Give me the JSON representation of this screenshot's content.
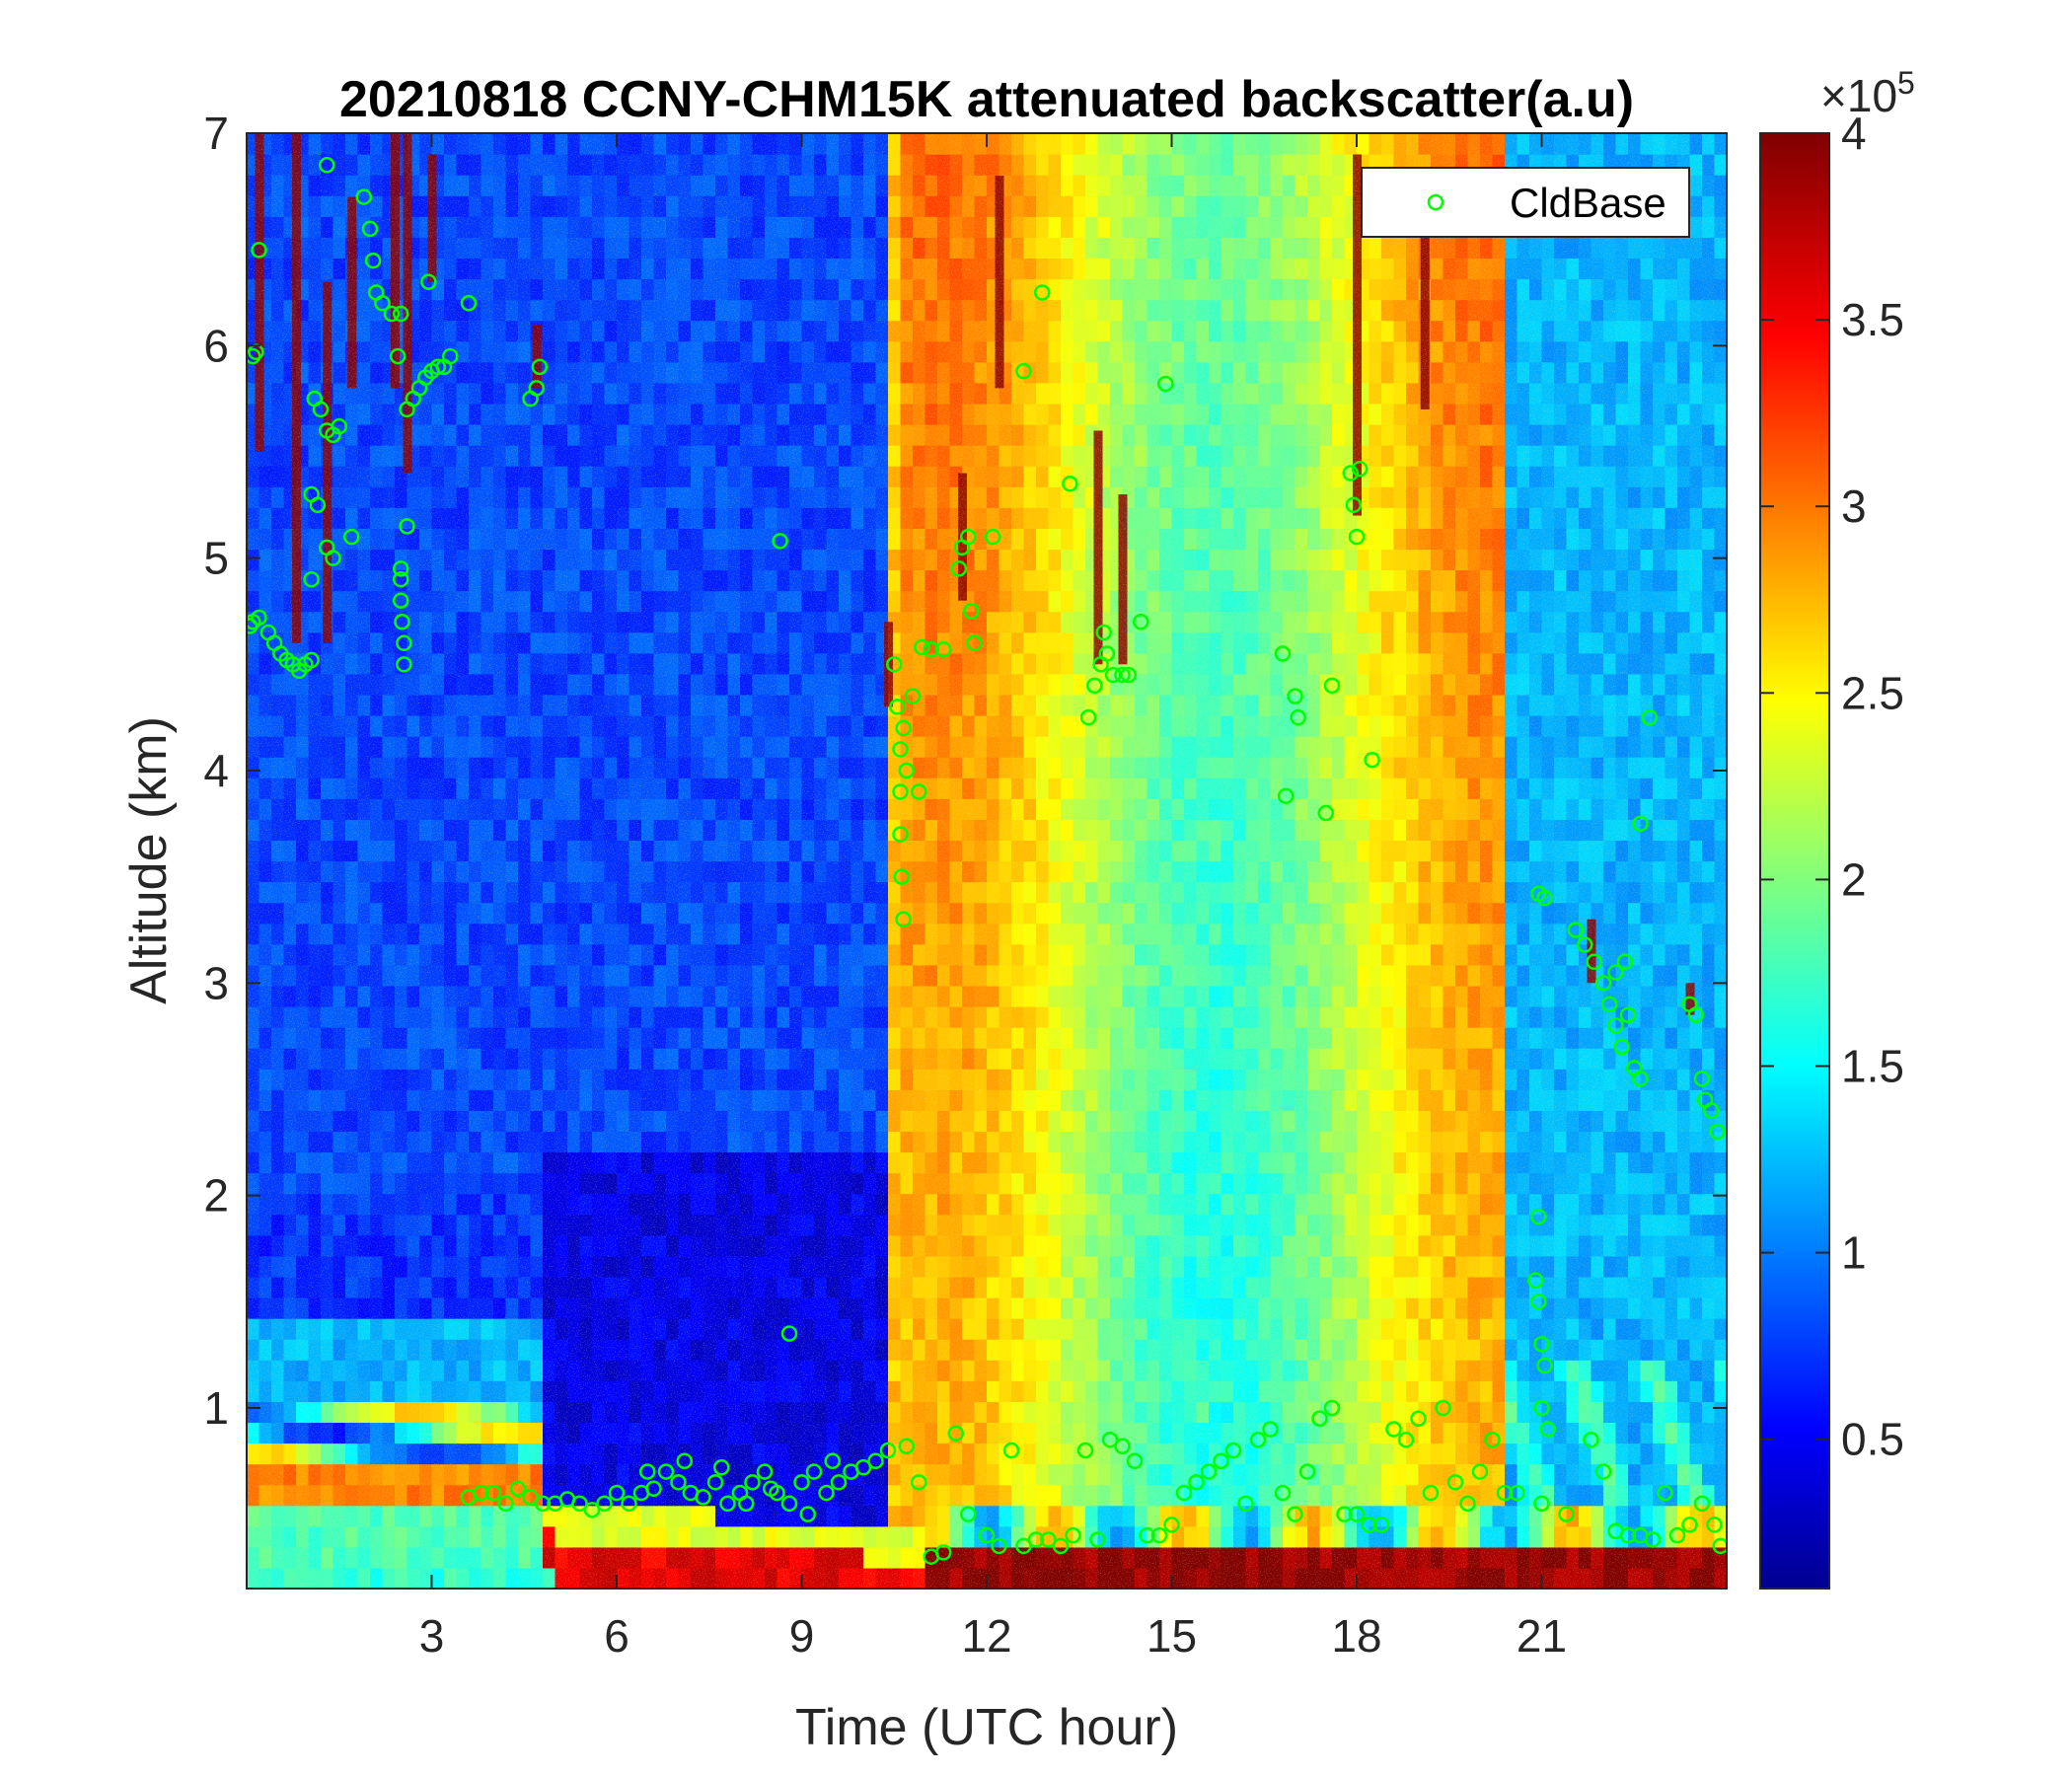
{
  "chart_data": {
    "type": "heatmap",
    "title": "20210818 CCNY-CHM15K attenuated backscatter(a.u)",
    "xlabel": "Time (UTC hour)",
    "ylabel": "Altitude (km)",
    "xlim": [
      0,
      24
    ],
    "ylim": [
      0.15,
      7
    ],
    "x_ticks": [
      "3",
      "6",
      "9",
      "12",
      "15",
      "18",
      "21"
    ],
    "y_ticks": [
      "1",
      "2",
      "3",
      "4",
      "5",
      "6",
      "7"
    ],
    "colorbar": {
      "colormap": "jet",
      "range": [
        0.1,
        4
      ],
      "tick_labels": [
        "0.5",
        "1",
        "1.5",
        "2",
        "2.5",
        "3",
        "3.5",
        "4"
      ],
      "multiplier": "×10",
      "exponent": "5"
    },
    "legend": {
      "position": "top-right",
      "entries": [
        {
          "name": "CldBase",
          "marker": "o",
          "color": "#00ff00"
        }
      ]
    },
    "series": [
      {
        "name": "CldBase",
        "marker": "o",
        "color": "#00ff00",
        "points": [
          [
            0.05,
            4.68
          ],
          [
            0.1,
            4.7
          ],
          [
            0.2,
            4.72
          ],
          [
            0.35,
            4.65
          ],
          [
            0.45,
            4.6
          ],
          [
            0.55,
            4.55
          ],
          [
            0.65,
            4.52
          ],
          [
            0.75,
            4.5
          ],
          [
            0.85,
            4.47
          ],
          [
            0.95,
            4.5
          ],
          [
            1.05,
            4.52
          ],
          [
            0.1,
            5.95
          ],
          [
            0.15,
            5.97
          ],
          [
            0.2,
            6.45
          ],
          [
            1.1,
            5.75
          ],
          [
            1.2,
            5.7
          ],
          [
            1.3,
            5.6
          ],
          [
            1.4,
            5.58
          ],
          [
            1.5,
            5.62
          ],
          [
            1.05,
            5.3
          ],
          [
            1.15,
            5.25
          ],
          [
            1.3,
            5.05
          ],
          [
            1.4,
            5.0
          ],
          [
            1.7,
            5.1
          ],
          [
            1.05,
            4.9
          ],
          [
            1.3,
            6.85
          ],
          [
            1.9,
            6.7
          ],
          [
            2.0,
            6.55
          ],
          [
            2.05,
            6.4
          ],
          [
            2.1,
            6.25
          ],
          [
            2.2,
            6.2
          ],
          [
            2.35,
            6.15
          ],
          [
            2.5,
            6.15
          ],
          [
            2.45,
            5.95
          ],
          [
            2.6,
            5.7
          ],
          [
            2.7,
            5.75
          ],
          [
            2.8,
            5.8
          ],
          [
            2.9,
            5.85
          ],
          [
            3.0,
            5.88
          ],
          [
            3.1,
            5.9
          ],
          [
            3.2,
            5.9
          ],
          [
            2.5,
            4.9
          ],
          [
            2.5,
            4.8
          ],
          [
            2.52,
            4.7
          ],
          [
            2.55,
            4.6
          ],
          [
            2.55,
            4.5
          ],
          [
            2.6,
            5.15
          ],
          [
            2.5,
            4.95
          ],
          [
            3.3,
            5.95
          ],
          [
            3.6,
            6.2
          ],
          [
            2.95,
            6.3
          ],
          [
            4.6,
            5.75
          ],
          [
            4.7,
            5.8
          ],
          [
            4.75,
            5.9
          ],
          [
            8.65,
            5.08
          ],
          [
            10.5,
            4.5
          ],
          [
            10.55,
            4.3
          ],
          [
            10.6,
            4.1
          ],
          [
            10.6,
            3.9
          ],
          [
            10.6,
            3.7
          ],
          [
            10.62,
            3.5
          ],
          [
            10.65,
            3.3
          ],
          [
            10.7,
            4.0
          ],
          [
            10.8,
            4.35
          ],
          [
            10.65,
            4.2
          ],
          [
            10.9,
            3.9
          ],
          [
            10.95,
            4.58
          ],
          [
            11.1,
            4.57
          ],
          [
            11.3,
            4.57
          ],
          [
            11.55,
            4.95
          ],
          [
            11.6,
            5.05
          ],
          [
            11.7,
            5.1
          ],
          [
            11.75,
            4.75
          ],
          [
            11.8,
            4.6
          ],
          [
            12.1,
            5.1
          ],
          [
            12.6,
            5.88
          ],
          [
            12.9,
            6.25
          ],
          [
            13.35,
            5.35
          ],
          [
            13.65,
            4.25
          ],
          [
            13.75,
            4.4
          ],
          [
            13.85,
            4.5
          ],
          [
            13.95,
            4.55
          ],
          [
            14.05,
            4.45
          ],
          [
            14.2,
            4.45
          ],
          [
            13.9,
            4.65
          ],
          [
            14.3,
            4.45
          ],
          [
            14.5,
            4.7
          ],
          [
            14.9,
            5.82
          ],
          [
            16.8,
            4.55
          ],
          [
            16.85,
            3.88
          ],
          [
            17.0,
            4.35
          ],
          [
            17.05,
            4.25
          ],
          [
            17.5,
            3.8
          ],
          [
            17.6,
            4.4
          ],
          [
            17.9,
            5.4
          ],
          [
            17.95,
            5.25
          ],
          [
            18.0,
            5.1
          ],
          [
            18.05,
            5.42
          ],
          [
            18.25,
            4.05
          ],
          [
            20.95,
            3.42
          ],
          [
            21.05,
            3.4
          ],
          [
            21.55,
            3.25
          ],
          [
            21.7,
            3.18
          ],
          [
            21.85,
            3.1
          ],
          [
            22.0,
            3.0
          ],
          [
            22.1,
            2.9
          ],
          [
            22.2,
            2.8
          ],
          [
            22.3,
            2.7
          ],
          [
            22.4,
            2.85
          ],
          [
            22.5,
            2.6
          ],
          [
            22.6,
            2.55
          ],
          [
            22.2,
            3.05
          ],
          [
            22.35,
            3.1
          ],
          [
            22.75,
            4.25
          ],
          [
            22.6,
            3.75
          ],
          [
            23.4,
            2.9
          ],
          [
            23.5,
            2.85
          ],
          [
            23.6,
            2.55
          ],
          [
            23.65,
            2.45
          ],
          [
            23.75,
            2.4
          ],
          [
            23.85,
            2.3
          ],
          [
            20.95,
            1.9
          ],
          [
            20.9,
            1.6
          ],
          [
            20.95,
            1.5
          ],
          [
            21.0,
            1.3
          ],
          [
            21.05,
            1.2
          ],
          [
            21.0,
            1.0
          ],
          [
            21.1,
            0.9
          ],
          [
            21.0,
            0.55
          ],
          [
            8.8,
            1.35
          ],
          [
            3.6,
            0.58
          ],
          [
            3.8,
            0.6
          ],
          [
            4.0,
            0.6
          ],
          [
            4.2,
            0.55
          ],
          [
            4.4,
            0.62
          ],
          [
            4.6,
            0.58
          ],
          [
            4.8,
            0.55
          ],
          [
            5.0,
            0.55
          ],
          [
            5.2,
            0.57
          ],
          [
            5.4,
            0.55
          ],
          [
            5.6,
            0.52
          ],
          [
            5.8,
            0.55
          ],
          [
            6.0,
            0.6
          ],
          [
            6.2,
            0.55
          ],
          [
            6.4,
            0.6
          ],
          [
            6.6,
            0.62
          ],
          [
            6.8,
            0.7
          ],
          [
            7.0,
            0.65
          ],
          [
            7.2,
            0.6
          ],
          [
            7.4,
            0.58
          ],
          [
            7.6,
            0.65
          ],
          [
            7.8,
            0.55
          ],
          [
            8.0,
            0.6
          ],
          [
            8.2,
            0.65
          ],
          [
            8.4,
            0.7
          ],
          [
            8.6,
            0.6
          ],
          [
            8.8,
            0.55
          ],
          [
            9.0,
            0.65
          ],
          [
            9.2,
            0.7
          ],
          [
            9.4,
            0.6
          ],
          [
            9.6,
            0.65
          ],
          [
            9.8,
            0.7
          ],
          [
            10.0,
            0.72
          ],
          [
            10.2,
            0.75
          ],
          [
            10.4,
            0.8
          ],
          [
            6.5,
            0.7
          ],
          [
            7.1,
            0.75
          ],
          [
            7.7,
            0.72
          ],
          [
            8.1,
            0.55
          ],
          [
            8.5,
            0.62
          ],
          [
            9.1,
            0.5
          ],
          [
            9.5,
            0.75
          ],
          [
            10.7,
            0.82
          ],
          [
            10.9,
            0.65
          ],
          [
            11.1,
            0.3
          ],
          [
            11.3,
            0.32
          ],
          [
            11.5,
            0.88
          ],
          [
            11.7,
            0.5
          ],
          [
            12.0,
            0.4
          ],
          [
            12.2,
            0.35
          ],
          [
            12.4,
            0.8
          ],
          [
            12.6,
            0.35
          ],
          [
            12.8,
            0.38
          ],
          [
            13.0,
            0.38
          ],
          [
            13.2,
            0.35
          ],
          [
            13.4,
            0.4
          ],
          [
            13.6,
            0.8
          ],
          [
            13.8,
            0.38
          ],
          [
            14.0,
            0.85
          ],
          [
            14.2,
            0.82
          ],
          [
            14.4,
            0.75
          ],
          [
            14.6,
            0.4
          ],
          [
            14.8,
            0.4
          ],
          [
            15.0,
            0.45
          ],
          [
            15.2,
            0.6
          ],
          [
            15.4,
            0.65
          ],
          [
            15.6,
            0.7
          ],
          [
            15.8,
            0.75
          ],
          [
            16.0,
            0.8
          ],
          [
            16.2,
            0.55
          ],
          [
            16.4,
            0.85
          ],
          [
            16.6,
            0.9
          ],
          [
            16.8,
            0.6
          ],
          [
            17.0,
            0.5
          ],
          [
            17.2,
            0.7
          ],
          [
            17.4,
            0.95
          ],
          [
            17.6,
            1.0
          ],
          [
            17.8,
            0.5
          ],
          [
            18.0,
            0.5
          ],
          [
            18.2,
            0.45
          ],
          [
            18.4,
            0.45
          ],
          [
            18.6,
            0.9
          ],
          [
            18.8,
            0.85
          ],
          [
            19.0,
            0.95
          ],
          [
            19.2,
            0.6
          ],
          [
            19.4,
            1.0
          ],
          [
            19.6,
            0.65
          ],
          [
            19.8,
            0.55
          ],
          [
            20.0,
            0.7
          ],
          [
            20.2,
            0.85
          ],
          [
            20.4,
            0.6
          ],
          [
            20.6,
            0.6
          ],
          [
            21.4,
            0.5
          ],
          [
            21.8,
            0.85
          ],
          [
            22.0,
            0.7
          ],
          [
            22.2,
            0.42
          ],
          [
            22.4,
            0.4
          ],
          [
            22.6,
            0.4
          ],
          [
            22.8,
            0.38
          ],
          [
            23.0,
            0.6
          ],
          [
            23.2,
            0.4
          ],
          [
            23.4,
            0.45
          ],
          [
            23.6,
            0.55
          ],
          [
            23.8,
            0.45
          ],
          [
            23.9,
            0.35
          ]
        ]
      }
    ]
  }
}
